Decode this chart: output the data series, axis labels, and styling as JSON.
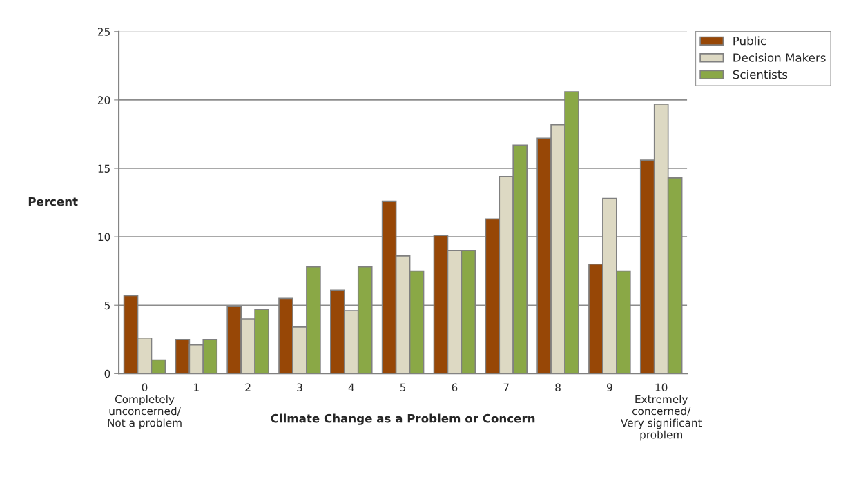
{
  "chart_data": {
    "type": "bar",
    "xlabel": "Climate Change as a Problem or Concern",
    "ylabel": "Percent",
    "categories": [
      "0\nCompletely\nunconcerned/\nNot a problem",
      "1",
      "2",
      "3",
      "4",
      "5",
      "6",
      "7",
      "8",
      "9",
      "10\nExtremely\nconcerned/\nVery significant\nproblem"
    ],
    "series": [
      {
        "name": "Public",
        "color": "#974706",
        "values": [
          5.7,
          2.5,
          4.9,
          5.5,
          6.1,
          12.6,
          10.1,
          11.3,
          17.2,
          8.0,
          15.6
        ]
      },
      {
        "name": "Decision Makers",
        "color": "#ddd9c3",
        "values": [
          2.6,
          2.1,
          4.0,
          3.4,
          4.6,
          8.6,
          9.0,
          14.4,
          18.2,
          12.8,
          19.7
        ]
      },
      {
        "name": "Scientists",
        "color": "#8aa846",
        "values": [
          1.0,
          2.5,
          4.7,
          7.8,
          7.8,
          7.5,
          9.0,
          16.7,
          20.6,
          7.5,
          14.3
        ]
      }
    ],
    "ylim": [
      0,
      25
    ],
    "yticks": [
      0,
      5,
      10,
      15,
      20,
      25
    ],
    "grid": "y",
    "legend": "top right"
  }
}
